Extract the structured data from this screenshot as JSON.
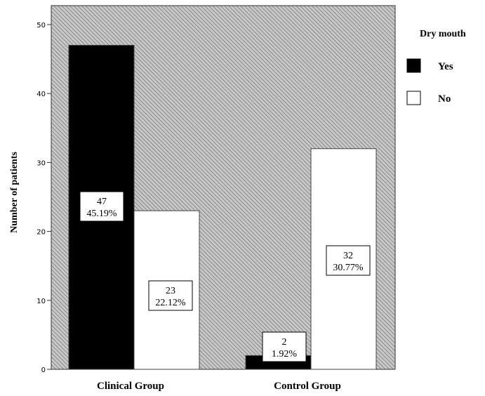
{
  "chart_data": {
    "type": "bar",
    "categories": [
      "Clinical Group",
      "Control Group"
    ],
    "series": [
      {
        "name": "Yes",
        "values": [
          47,
          2
        ],
        "labels": [
          "45.19%",
          "1.92%"
        ],
        "color": "#000000"
      },
      {
        "name": "No",
        "values": [
          23,
          32
        ],
        "labels": [
          "22.12%",
          "30.77%"
        ],
        "color": "#ffffff"
      }
    ],
    "title": "",
    "xlabel": "",
    "ylabel": "Number of patients",
    "ylim": [
      0,
      50
    ],
    "yticks": [
      0,
      10,
      20,
      30,
      40,
      50
    ],
    "legend": {
      "title": "Dry mouth",
      "placement": "top-right"
    },
    "background": "hatched-gray",
    "grid": false
  }
}
